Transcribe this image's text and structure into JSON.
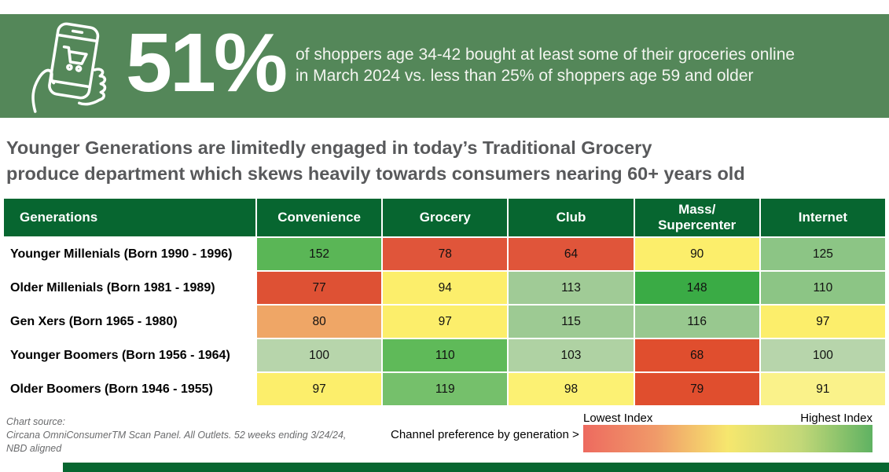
{
  "banner": {
    "bg_color": "#548759",
    "stat": "51%",
    "description_line1": "of shoppers age 34-42 bought at least some of their groceries online",
    "description_line2": "in March 2024 vs. less than 25% of shoppers age 59 and older",
    "icon": "phone-shopping-cart-icon"
  },
  "headline": {
    "line1": "Younger Generations are limitedly engaged in today’s Traditional Grocery",
    "line2": "produce department which skews heavily towards consumers nearing 60+ years old"
  },
  "table": {
    "header_bg": "#076630",
    "corner_label": "Generations",
    "columns": [
      "Convenience",
      "Grocery",
      "Club",
      "Mass/\nSupercenter",
      "Internet"
    ],
    "rows": [
      {
        "label": "Younger Millenials (Born 1990 - 1996)",
        "values": [
          "152",
          "78",
          "64",
          "90",
          "125"
        ],
        "colors": [
          "#5ab656",
          "#e0553a",
          "#e0553a",
          "#fcee6b",
          "#8cc585"
        ]
      },
      {
        "label": "Older Millenials (Born 1981 - 1989)",
        "values": [
          "77",
          "94",
          "113",
          "148",
          "110"
        ],
        "colors": [
          "#de5134",
          "#fcee6b",
          "#a0cb96",
          "#3aab45",
          "#8cc585"
        ]
      },
      {
        "label": "Gen Xers (Born 1965 - 1980)",
        "values": [
          "80",
          "97",
          "115",
          "116",
          "97"
        ],
        "colors": [
          "#efa666",
          "#fcee6b",
          "#9dca93",
          "#98c88f",
          "#fcee6b"
        ]
      },
      {
        "label": "Younger Boomers (Born 1956 - 1964)",
        "values": [
          "100",
          "110",
          "103",
          "68",
          "100"
        ],
        "colors": [
          "#b7d5ab",
          "#5fba59",
          "#afd2a3",
          "#e04e2e",
          "#b7d5ab"
        ]
      },
      {
        "label": "Older Boomers (Born 1946 - 1955)",
        "values": [
          "97",
          "119",
          "98",
          "79",
          "91"
        ],
        "colors": [
          "#fcee6b",
          "#75c06b",
          "#fcf173",
          "#e04e2e",
          "#faf28a"
        ]
      }
    ]
  },
  "chart_data": {
    "type": "heatmap",
    "title": "Channel preference by generation",
    "columns": [
      "Convenience",
      "Grocery",
      "Club",
      "Mass/Supercenter",
      "Internet"
    ],
    "rows": [
      "Younger Millenials (Born 1990 - 1996)",
      "Older Millenials (Born 1981 - 1989)",
      "Gen Xers (Born 1965 - 1980)",
      "Younger Boomers (Born 1956 - 1964)",
      "Older Boomers (Born 1946 - 1955)"
    ],
    "values": [
      [
        152,
        78,
        64,
        90,
        125
      ],
      [
        77,
        94,
        113,
        148,
        110
      ],
      [
        80,
        97,
        115,
        116,
        97
      ],
      [
        100,
        110,
        103,
        68,
        100
      ],
      [
        97,
        119,
        98,
        79,
        91
      ]
    ],
    "color_scale": {
      "low_label": "Lowest Index",
      "high_label": "Highest Index",
      "low": "#e0553a",
      "mid": "#fcee6b",
      "high": "#3aab45"
    }
  },
  "footer": {
    "source_line1": "Chart source:",
    "source_line2": "Circana OmniConsumerTM Scan Panel. All Outlets. 52 weeks ending 3/24/24,",
    "source_line3": "NBD aligned",
    "legend_caption": "Channel preference by generation >",
    "legend_low": "Lowest Index",
    "legend_high": "Highest Index",
    "legend_gradient": [
      "#ed6a5f",
      "#f09a69",
      "#f6e76e",
      "#c3d878",
      "#5fb262"
    ],
    "accent_bar_color": "#076630"
  }
}
